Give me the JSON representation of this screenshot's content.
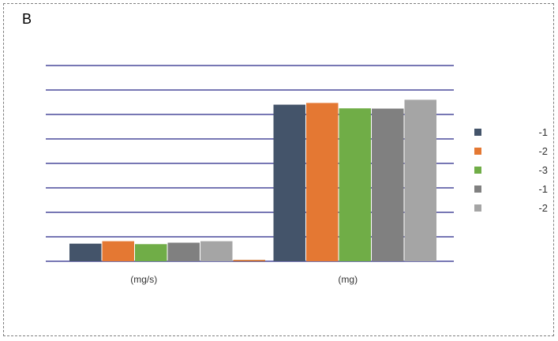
{
  "panel_label": "B",
  "chart_data": {
    "type": "bar",
    "title": "",
    "xlabel": "",
    "ylabel": "",
    "ylim": [
      0,
      8
    ],
    "yticks": [
      0,
      1,
      2,
      3,
      4,
      5,
      6,
      7,
      8
    ],
    "grid": true,
    "legend_placement": "right",
    "categories": [
      "(mg/s)",
      "(mg)"
    ],
    "series": [
      {
        "name": "-1",
        "color": "#44546a",
        "values": [
          0.72,
          6.4
        ]
      },
      {
        "name": "-2",
        "color": "#e47833",
        "values": [
          0.82,
          6.47
        ]
      },
      {
        "name": "-3",
        "color": "#70ad47",
        "values": [
          0.7,
          6.25
        ]
      },
      {
        "name": "-1",
        "color": "#808080",
        "values": [
          0.76,
          6.24
        ]
      },
      {
        "name": "-2",
        "color": "#a5a5a5",
        "values": [
          0.82,
          6.6
        ]
      },
      {
        "name": "",
        "color": "#c55a11",
        "values": [
          0.05,
          0
        ]
      }
    ]
  }
}
